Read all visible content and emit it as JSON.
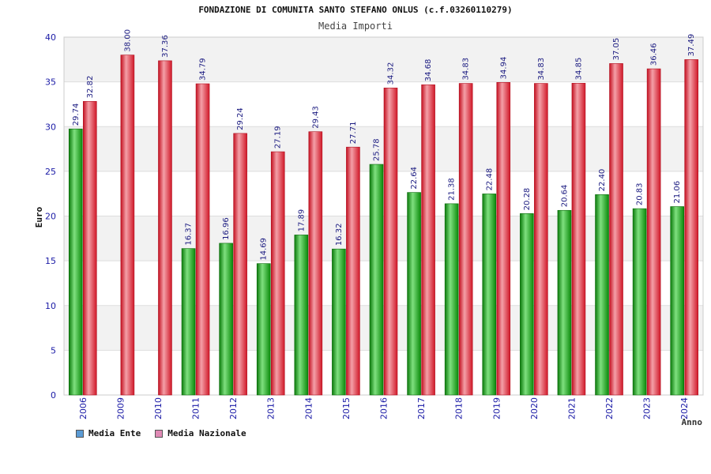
{
  "chart_data": {
    "type": "bar",
    "title": "FONDAZIONE DI COMUNITA SANTO STEFANO ONLUS (c.f.03260110279)",
    "subtitle": "Media Importi",
    "xlabel": "Anno",
    "ylabel": "Euro",
    "ylim": [
      0,
      40
    ],
    "yticks": [
      0,
      5,
      10,
      15,
      20,
      25,
      30,
      35,
      40
    ],
    "grid": true,
    "legend_position": "bottom-left",
    "categories": [
      "2006",
      "2009",
      "2010",
      "2011",
      "2012",
      "2013",
      "2014",
      "2015",
      "2016",
      "2017",
      "2018",
      "2019",
      "2020",
      "2021",
      "2022",
      "2023",
      "2024"
    ],
    "series": [
      {
        "name": "Media Ente",
        "color": "#22aa22",
        "legend_color": "#5b9bd5",
        "values": [
          29.74,
          null,
          null,
          16.37,
          16.96,
          14.69,
          17.89,
          16.32,
          25.78,
          22.64,
          21.38,
          22.48,
          20.28,
          20.64,
          22.4,
          20.83,
          21.06
        ],
        "labels": [
          "29.74",
          "",
          "",
          "16.37",
          "16.96",
          "14.69",
          "17.89",
          "16.32",
          "25.78",
          "22.64",
          "21.38",
          "22.48",
          "20.28",
          "20.64",
          "22.40",
          "20.83",
          "21.06"
        ]
      },
      {
        "name": "Media Nazionale",
        "color": "#dd2233",
        "legend_color": "#e08ab5",
        "values": [
          32.82,
          38.0,
          37.36,
          34.79,
          29.24,
          27.19,
          29.43,
          27.71,
          34.32,
          34.68,
          34.83,
          34.94,
          34.83,
          34.85,
          37.05,
          36.46,
          37.49
        ],
        "labels": [
          "32.82",
          "38.00",
          "37.36",
          "34.79",
          "29.24",
          "27.19",
          "29.43",
          "27.71",
          "34.32",
          "34.68",
          "34.83",
          "34.94",
          "34.83",
          "34.85",
          "37.05",
          "36.46",
          "37.49"
        ]
      }
    ]
  }
}
